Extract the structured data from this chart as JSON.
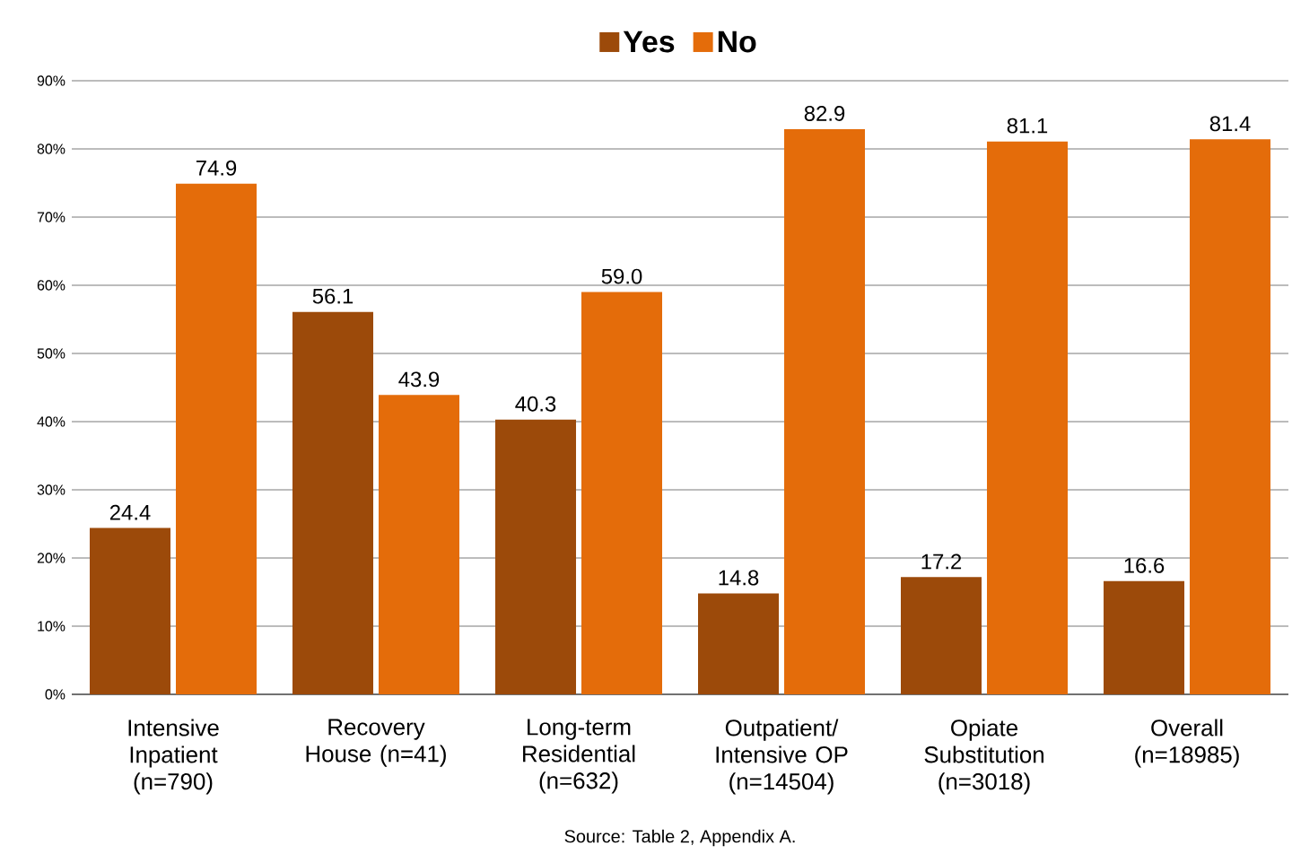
{
  "chart_data": {
    "type": "bar",
    "categories": [
      "Intensive Inpatient (n=790)",
      "Recovery House (n=41)",
      "Long-term Residential (n=632)",
      "Outpatient/ Intensive OP (n=14504)",
      "Opiate Substitution (n=3018)",
      "Overall (n=18985)"
    ],
    "series": [
      {
        "name": "Yes",
        "color": "#9c4a0a",
        "values": [
          24.4,
          56.1,
          40.3,
          14.8,
          17.2,
          16.6
        ],
        "value_labels": [
          "24.4",
          "56.1",
          "40.3",
          "14.8",
          "17.2",
          "16.6"
        ]
      },
      {
        "name": "No",
        "color": "#e46c0a",
        "values": [
          74.9,
          43.9,
          59.0,
          82.9,
          81.1,
          81.4
        ],
        "value_labels": [
          "74.9",
          "43.9",
          "59.0",
          "82.9",
          "81.1",
          "81.4"
        ]
      }
    ],
    "ylim": [
      0,
      90
    ],
    "yticks": [
      {
        "value": 0,
        "label": "0%"
      },
      {
        "value": 10,
        "label": "10%"
      },
      {
        "value": 20,
        "label": "20%"
      },
      {
        "value": 30,
        "label": "30%"
      },
      {
        "value": 40,
        "label": "40%"
      },
      {
        "value": 50,
        "label": "50%"
      },
      {
        "value": 60,
        "label": "60%"
      },
      {
        "value": 70,
        "label": "70%"
      },
      {
        "value": 80,
        "label": "80%"
      },
      {
        "value": 90,
        "label": "90%"
      }
    ],
    "grid": "y",
    "legend": "top",
    "annotations": [
      "Source: Table 2, Appendix A."
    ]
  }
}
